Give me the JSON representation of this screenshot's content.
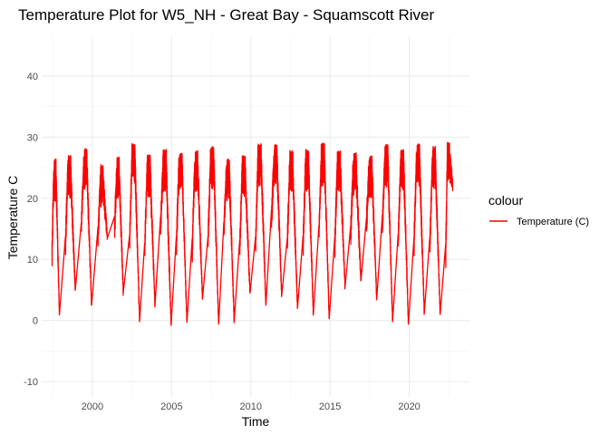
{
  "chart_data": {
    "type": "line",
    "title": "Temperature Plot for W5_NH - Great Bay - Squamscott River",
    "xlabel": "Time",
    "ylabel": "Temperature C",
    "xlim": [
      1996.8,
      2023.8
    ],
    "ylim": [
      -12.5,
      46.5
    ],
    "x_ticks": [
      2000,
      2005,
      2010,
      2015,
      2020
    ],
    "x_tick_labels": [
      "2000",
      "2005",
      "2010",
      "2015",
      "2020"
    ],
    "y_ticks": [
      -10,
      0,
      10,
      20,
      30,
      40
    ],
    "y_tick_labels": [
      "-10",
      "0",
      "10",
      "20",
      "30",
      "40"
    ],
    "grid": true,
    "legend": {
      "title": "colour",
      "position": "right",
      "entries": [
        {
          "label": "Temperature (C)",
          "color": "#ff0000"
        }
      ]
    },
    "series": [
      {
        "name": "Temperature (C)",
        "color": "#ff0000",
        "annual_cycles": [
          {
            "year": 1997,
            "start": 1997.45,
            "peak": 26.5,
            "end": 1997.92,
            "low": 1.0
          },
          {
            "year": 1998,
            "start": 1998.3,
            "peak": 27.0,
            "end": 1998.92,
            "low": 5.0
          },
          {
            "year": 1999,
            "start": 1999.3,
            "peak": 28.3,
            "end": 1999.95,
            "low": 2.5
          },
          {
            "year": 2000,
            "start": 2000.35,
            "peak": 25.5,
            "end": 2000.95,
            "low": 13.5
          },
          {
            "year": 2001,
            "start": 2001.4,
            "peak": 26.8,
            "end": 2001.95,
            "low": 4.5
          },
          {
            "year": 2002,
            "start": 2002.35,
            "peak": 29.0,
            "end": 2002.98,
            "low": -0.2
          },
          {
            "year": 2003,
            "start": 2003.3,
            "peak": 27.2,
            "end": 2003.95,
            "low": 2.5
          },
          {
            "year": 2004,
            "start": 2004.3,
            "peak": 28.0,
            "end": 2004.97,
            "low": -0.8
          },
          {
            "year": 2005,
            "start": 2005.3,
            "peak": 27.5,
            "end": 2005.97,
            "low": -0.3
          },
          {
            "year": 2006,
            "start": 2006.3,
            "peak": 27.8,
            "end": 2006.95,
            "low": 3.5
          },
          {
            "year": 2007,
            "start": 2007.3,
            "peak": 28.5,
            "end": 2007.97,
            "low": -0.6
          },
          {
            "year": 2008,
            "start": 2008.3,
            "peak": 26.5,
            "end": 2008.95,
            "low": -0.1
          },
          {
            "year": 2009,
            "start": 2009.3,
            "peak": 27.0,
            "end": 2009.95,
            "low": 4.5
          },
          {
            "year": 2010,
            "start": 2010.3,
            "peak": 29.0,
            "end": 2010.95,
            "low": 2.5
          },
          {
            "year": 2011,
            "start": 2011.3,
            "peak": 28.8,
            "end": 2011.95,
            "low": 4.0
          },
          {
            "year": 2012,
            "start": 2012.3,
            "peak": 27.8,
            "end": 2012.95,
            "low": 2.0
          },
          {
            "year": 2013,
            "start": 2013.3,
            "peak": 28.0,
            "end": 2013.95,
            "low": 1.0
          },
          {
            "year": 2014,
            "start": 2014.3,
            "peak": 29.0,
            "end": 2014.95,
            "low": 0.3
          },
          {
            "year": 2015,
            "start": 2015.3,
            "peak": 27.8,
            "end": 2015.95,
            "low": 5.5
          },
          {
            "year": 2016,
            "start": 2016.3,
            "peak": 27.5,
            "end": 2016.95,
            "low": 6.5
          },
          {
            "year": 2017,
            "start": 2017.3,
            "peak": 27.0,
            "end": 2017.95,
            "low": 3.5
          },
          {
            "year": 2018,
            "start": 2018.3,
            "peak": 28.8,
            "end": 2018.95,
            "low": -0.1
          },
          {
            "year": 2019,
            "start": 2019.3,
            "peak": 28.0,
            "end": 2019.95,
            "low": -0.6
          },
          {
            "year": 2020,
            "start": 2020.3,
            "peak": 29.0,
            "end": 2020.95,
            "low": 1.2
          },
          {
            "year": 2021,
            "start": 2021.3,
            "peak": 28.5,
            "end": 2021.95,
            "low": 1.0
          },
          {
            "year": 2022,
            "start": 2022.3,
            "peak": 29.3,
            "end": 2022.75,
            "low": 22.0
          }
        ]
      }
    ]
  }
}
